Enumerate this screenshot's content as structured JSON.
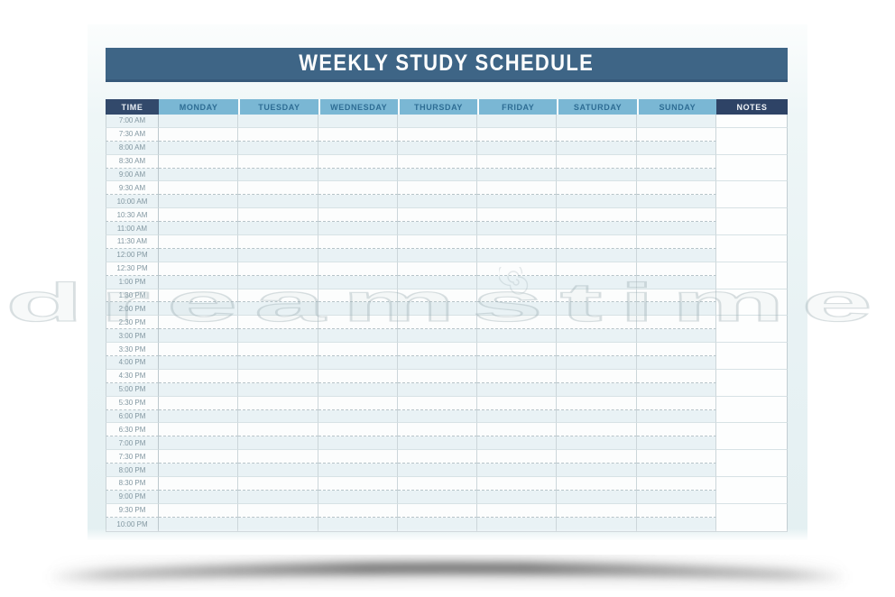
{
  "title": "WEEKLY STUDY SCHEDULE",
  "table": {
    "time_header": "TIME",
    "day_headers": [
      "MONDAY",
      "TUESDAY",
      "WEDNESDAY",
      "THURSDAY",
      "FRIDAY",
      "SATURDAY",
      "SUNDAY"
    ],
    "notes_header": "NOTES",
    "time_slots": [
      "7:00 AM",
      "7:30 AM",
      "8:00 AM",
      "8:30 AM",
      "9:00 AM",
      "9:30 AM",
      "10:00 AM",
      "10:30 AM",
      "11:00 AM",
      "11:30 AM",
      "12:00 PM",
      "12:30 PM",
      "1:00 PM",
      "1:30 PM",
      "2:00 PM",
      "2:30 PM",
      "3:00 PM",
      "3:30 PM",
      "4:00 PM",
      "4:30 PM",
      "5:00 PM",
      "5:30 PM",
      "6:00 PM",
      "6:30 PM",
      "7:00 PM",
      "7:30 PM",
      "8:00 PM",
      "8:30 PM",
      "9:00 PM",
      "9:30 PM",
      "10:00 PM"
    ]
  },
  "watermark": {
    "text": "dreamstime",
    "logo": "dreamstime-spiral-icon"
  },
  "colors": {
    "title_bar": "#3e6586",
    "header_navy": "#32496b",
    "header_notes_navy": "#2e4366",
    "header_day_blue": "#7ab7d4",
    "header_day_text": "#2e6d94",
    "row_tint": "#e9f2f5",
    "time_text": "#8297a1",
    "dashed_line": "#b7c4c9",
    "solid_line": "#d7e2e5"
  }
}
